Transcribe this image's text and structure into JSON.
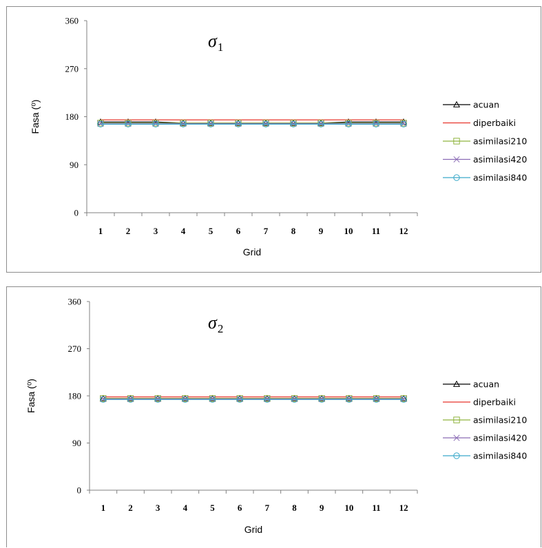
{
  "chart_data": [
    {
      "type": "line",
      "title": "σ",
      "title_subscript": "1",
      "xlabel": "Grid",
      "ylabel": "Fasa (⁰)",
      "ylim": [
        0,
        360
      ],
      "yticks": [
        0,
        90,
        180,
        270,
        360
      ],
      "x": [
        1,
        2,
        3,
        4,
        5,
        6,
        7,
        8,
        9,
        10,
        11,
        12
      ],
      "legend_position": "right",
      "grid": false,
      "series": [
        {
          "name": "acuan",
          "color": "#000000",
          "marker": "triangle",
          "values": [
            170,
            170,
            170,
            168,
            168,
            168,
            168,
            168,
            168,
            170,
            170,
            170
          ]
        },
        {
          "name": "diperbaiki",
          "color": "#e8332a",
          "marker": "none",
          "values": [
            174,
            174,
            174,
            174,
            174,
            174,
            174,
            174,
            174,
            174,
            174,
            174
          ]
        },
        {
          "name": "asimilasi210",
          "color": "#8fb43f",
          "marker": "square",
          "values": [
            168,
            168,
            168,
            168,
            168,
            168,
            168,
            168,
            168,
            168,
            168,
            168
          ]
        },
        {
          "name": "asimilasi420",
          "color": "#8a6bb5",
          "marker": "x",
          "values": [
            167,
            167,
            167,
            167,
            167,
            167,
            167,
            167,
            167,
            167,
            167,
            167
          ]
        },
        {
          "name": "asimilasi840",
          "color": "#3aa9c9",
          "marker": "circle",
          "values": [
            166,
            166,
            166,
            166,
            166,
            166,
            166,
            166,
            166,
            166,
            166,
            166
          ]
        }
      ]
    },
    {
      "type": "line",
      "title": "σ",
      "title_subscript": "2",
      "xlabel": "Grid",
      "ylabel": "Fasa (⁰)",
      "ylim": [
        0,
        360
      ],
      "yticks": [
        0,
        90,
        180,
        270,
        360
      ],
      "x": [
        1,
        2,
        3,
        4,
        5,
        6,
        7,
        8,
        9,
        10,
        11,
        12
      ],
      "legend_position": "right",
      "grid": false,
      "series": [
        {
          "name": "acuan",
          "color": "#000000",
          "marker": "triangle",
          "values": [
            175,
            175,
            175,
            175,
            175,
            175,
            175,
            175,
            175,
            175,
            175,
            175
          ]
        },
        {
          "name": "diperbaiki",
          "color": "#e8332a",
          "marker": "none",
          "values": [
            178,
            178,
            178,
            178,
            178,
            178,
            178,
            178,
            178,
            178,
            178,
            178
          ]
        },
        {
          "name": "asimilasi210",
          "color": "#8fb43f",
          "marker": "square",
          "values": [
            175,
            175,
            175,
            175,
            175,
            175,
            175,
            175,
            175,
            175,
            175,
            175
          ]
        },
        {
          "name": "asimilasi420",
          "color": "#8a6bb5",
          "marker": "x",
          "values": [
            174,
            174,
            174,
            174,
            174,
            174,
            174,
            174,
            174,
            174,
            174,
            174
          ]
        },
        {
          "name": "asimilasi840",
          "color": "#3aa9c9",
          "marker": "circle",
          "values": [
            173,
            173,
            173,
            173,
            173,
            173,
            173,
            173,
            173,
            173,
            173,
            173
          ]
        }
      ]
    }
  ]
}
